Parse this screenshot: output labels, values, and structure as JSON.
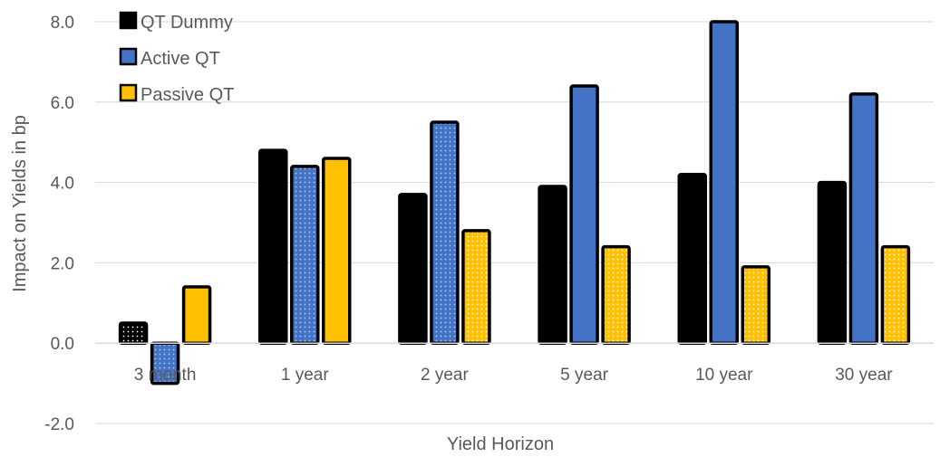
{
  "chart_data": {
    "type": "bar",
    "xlabel": "Yield Horizon",
    "ylabel": "Impact on Yields in bp",
    "ylim": [
      -2.0,
      8.0
    ],
    "yticks": [
      "-2.0",
      "0.0",
      "2.0",
      "4.0",
      "6.0",
      "8.0"
    ],
    "categories": [
      "3 month",
      "1 year",
      "2 year",
      "5 year",
      "10 year",
      "30 year"
    ],
    "series": [
      {
        "name": "QT Dummy",
        "color": "#000000",
        "values": [
          0.5,
          4.8,
          3.7,
          3.9,
          4.2,
          4.0
        ]
      },
      {
        "name": "Active QT",
        "color": "#4472C4",
        "values": [
          -1.0,
          4.4,
          5.5,
          6.4,
          8.0,
          6.2
        ]
      },
      {
        "name": "Passive QT",
        "color": "#FFC000",
        "values": [
          1.4,
          4.6,
          2.8,
          2.4,
          1.9,
          2.4
        ]
      }
    ],
    "patterned_bars": [
      {
        "series": "QT Dummy",
        "categories": [
          "3 month"
        ]
      },
      {
        "series": "Active QT",
        "categories": [
          "3 month",
          "1 year",
          "2 year"
        ]
      },
      {
        "series": "Passive QT",
        "categories": [
          "2 year",
          "5 year",
          "10 year",
          "30 year"
        ]
      }
    ],
    "grid": true,
    "legend": "top-left",
    "gridline_color": "#d9d9d9"
  }
}
